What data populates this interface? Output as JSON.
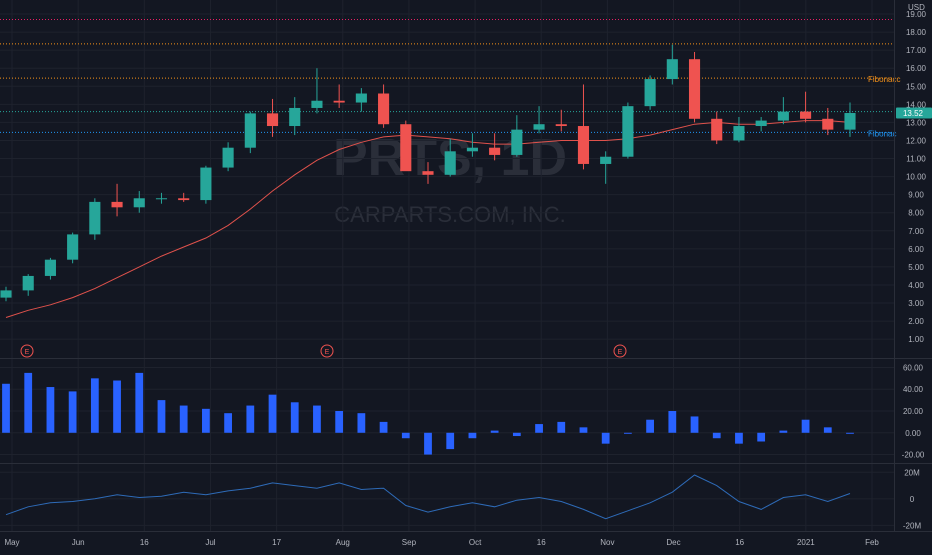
{
  "watermark": {
    "symbol_partial": "PRTS, 1D",
    "company": "CARPARTS.COM, INC."
  },
  "currency": "USD",
  "last_price": "13.52",
  "colors": {
    "background": "#131722",
    "grid": "#1e222d",
    "up": "#26a69a",
    "down": "#ef5350",
    "ma": "#e0524c",
    "fib_orange": "#f7931a",
    "fib_blue": "#2196f3",
    "top_line": "#e91e63",
    "hist": "#2962ff",
    "line": "#2e6bb8",
    "axis_text": "#b2b5be",
    "last_price_bg": "#26a69a"
  },
  "fib_levels": [
    {
      "price": 18.7,
      "color": "#e91e63",
      "label": ""
    },
    {
      "price": 17.35,
      "color": "#f7931a",
      "label": ""
    },
    {
      "price": 15.45,
      "color": "#f7931a",
      "label": "Fibonacc"
    },
    {
      "price": 13.6,
      "color": "#26a69a",
      "label": ""
    },
    {
      "price": 12.45,
      "color": "#2196f3",
      "label": "Fibonac"
    }
  ],
  "earnings_markers": [
    {
      "date": "May 1",
      "label": "E"
    },
    {
      "date": "Aug 3",
      "label": "E"
    },
    {
      "date": "Nov 3",
      "label": "E"
    }
  ],
  "price_axis_ticks": [
    "19.00",
    "18.00",
    "17.00",
    "16.00",
    "15.00",
    "14.00",
    "13.00",
    "12.00",
    "11.00",
    "10.00",
    "9.00",
    "8.00",
    "7.00",
    "6.00",
    "5.00",
    "4.00",
    "3.00",
    "2.00",
    "1.00"
  ],
  "osc_axis_ticks": [
    "60.00",
    "40.00",
    "20.00",
    "0.00",
    "-20.00"
  ],
  "vol_axis_ticks": [
    "20M",
    "0",
    "-20M"
  ],
  "x_axis_ticks": [
    "May",
    "Jun",
    "16",
    "Jul",
    "17",
    "Aug",
    "Sep",
    "Oct",
    "16",
    "Nov",
    "Dec",
    "16",
    "2021",
    "Feb"
  ],
  "chart_data": [
    {
      "type": "candlestick",
      "pane": "price",
      "xlabel": "",
      "ylabel": "USD",
      "ylim": [
        0.4,
        19.5
      ],
      "x": [
        "Apr 28",
        "May 5",
        "May 12",
        "May 19",
        "May 26",
        "Jun 2",
        "Jun 9",
        "Jun 16",
        "Jun 23",
        "Jun 30",
        "Jul 7",
        "Jul 14",
        "Jul 21",
        "Jul 28",
        "Aug 4",
        "Aug 11",
        "Aug 18",
        "Aug 25",
        "Sep 1",
        "Sep 8",
        "Sep 15",
        "Sep 22",
        "Sep 29",
        "Oct 6",
        "Oct 13",
        "Oct 20",
        "Oct 27",
        "Nov 3",
        "Nov 10",
        "Nov 17",
        "Nov 24",
        "Dec 1",
        "Dec 8",
        "Dec 15",
        "Dec 22",
        "Dec 29",
        "Jan 5",
        "Jan 12",
        "Jan 19"
      ],
      "series": [
        {
          "name": "open",
          "values": [
            3.3,
            3.7,
            4.5,
            5.4,
            6.8,
            8.6,
            8.3,
            8.8,
            8.8,
            8.7,
            10.5,
            11.6,
            13.5,
            12.8,
            13.8,
            14.2,
            14.1,
            14.6,
            12.9,
            10.3,
            10.1,
            11.4,
            11.6,
            11.2,
            12.6,
            12.9,
            12.8,
            10.7,
            11.1,
            13.9,
            15.4,
            16.5,
            13.2,
            12.0,
            12.8,
            13.1,
            13.6,
            13.2,
            12.6
          ]
        },
        {
          "name": "high",
          "values": [
            3.9,
            4.6,
            5.5,
            6.9,
            8.8,
            9.6,
            9.2,
            9.1,
            9.1,
            10.6,
            11.9,
            13.6,
            14.3,
            14.4,
            16.0,
            15.1,
            14.9,
            15.1,
            13.1,
            10.8,
            12.1,
            12.4,
            12.4,
            13.4,
            13.9,
            13.7,
            15.1,
            11.4,
            14.1,
            15.6,
            17.3,
            16.9,
            13.6,
            13.3,
            13.3,
            14.4,
            14.7,
            13.8,
            14.1
          ]
        },
        {
          "name": "low",
          "values": [
            3.1,
            3.4,
            4.3,
            5.2,
            6.5,
            7.8,
            8.0,
            8.5,
            8.6,
            8.5,
            10.3,
            11.3,
            12.2,
            12.3,
            13.5,
            13.8,
            13.6,
            12.7,
            10.5,
            9.6,
            10.0,
            11.1,
            10.9,
            11.1,
            12.4,
            12.5,
            10.4,
            9.6,
            11.0,
            13.7,
            15.1,
            13.0,
            11.8,
            11.9,
            12.5,
            12.9,
            13.0,
            12.3,
            12.2
          ]
        },
        {
          "name": "close",
          "values": [
            3.7,
            4.5,
            5.4,
            6.8,
            8.6,
            8.3,
            8.8,
            8.8,
            8.7,
            10.5,
            11.6,
            13.5,
            12.8,
            13.8,
            14.2,
            14.1,
            14.6,
            12.9,
            10.3,
            10.1,
            11.4,
            11.6,
            11.2,
            12.6,
            12.9,
            12.8,
            10.7,
            11.1,
            13.9,
            15.4,
            16.5,
            13.2,
            12.0,
            12.8,
            13.1,
            13.6,
            13.2,
            12.6,
            13.52
          ]
        },
        {
          "name": "ma",
          "values": [
            2.2,
            2.6,
            2.9,
            3.3,
            3.8,
            4.4,
            5.0,
            5.6,
            6.1,
            6.6,
            7.3,
            8.2,
            9.2,
            10.1,
            10.9,
            11.5,
            11.9,
            12.2,
            12.3,
            12.2,
            12.1,
            11.9,
            11.8,
            11.8,
            11.9,
            12.0,
            12.0,
            12.0,
            12.1,
            12.3,
            12.6,
            12.9,
            13.0,
            12.9,
            12.9,
            13.0,
            13.1,
            13.1,
            13.0
          ]
        }
      ]
    },
    {
      "type": "bar",
      "pane": "oscillator",
      "ylim": [
        -25,
        65
      ],
      "values": [
        45,
        55,
        42,
        38,
        50,
        48,
        55,
        30,
        25,
        22,
        18,
        25,
        35,
        28,
        25,
        20,
        18,
        10,
        -5,
        -20,
        -15,
        -5,
        2,
        -3,
        8,
        10,
        5,
        -10,
        0,
        12,
        20,
        15,
        -5,
        -10,
        -8,
        2,
        12,
        5,
        0
      ]
    },
    {
      "type": "line",
      "pane": "volume",
      "ylim": [
        -22,
        24
      ],
      "values": [
        -12,
        -6,
        -3,
        -2,
        0,
        3,
        1,
        2,
        5,
        3,
        6,
        8,
        12,
        10,
        8,
        12,
        7,
        8,
        -5,
        -10,
        -6,
        -3,
        -6,
        -1,
        1,
        -2,
        -8,
        -15,
        -9,
        -3,
        5,
        18,
        10,
        -2,
        -8,
        1,
        3,
        -2,
        4
      ]
    }
  ]
}
